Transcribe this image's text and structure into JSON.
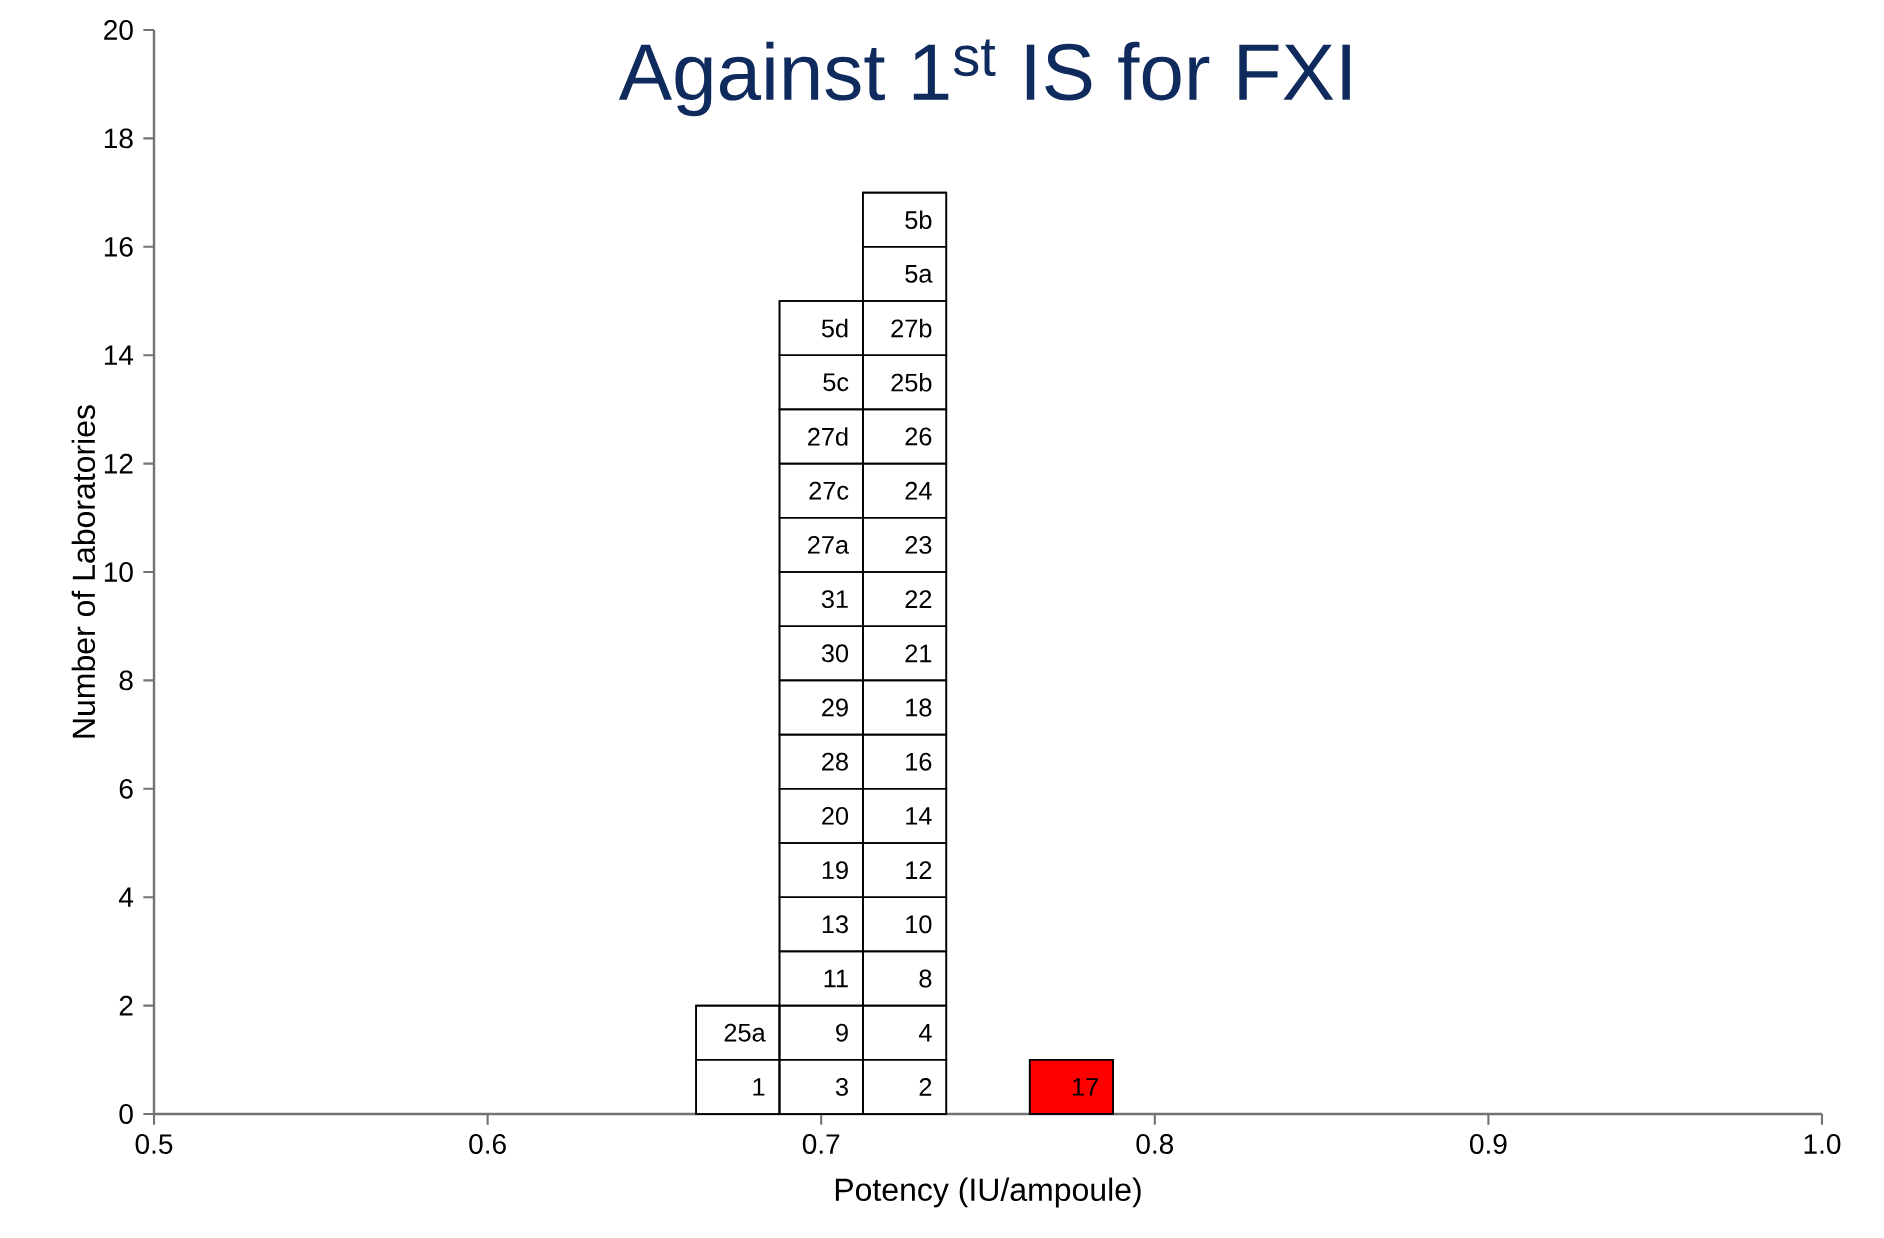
{
  "chart_data": {
    "type": "histogram",
    "title": "Against 1$^{st}$ IS for FXI",
    "xlabel": "Potency (IU/ampoule)",
    "ylabel": "Number of Laboratories",
    "bins": [
      0.6625,
      0.6875,
      0.7125,
      0.7375,
      0.7625,
      0.7875
    ],
    "values": [
      2,
      15,
      17,
      0,
      1
    ],
    "colors": [
      "#ffffff",
      "#ffffff",
      "#ffffff",
      "#ffffff",
      "#ff0000"
    ],
    "xlim": [
      0.5,
      1.0
    ],
    "xticks": [
      0.5,
      0.6,
      0.7,
      0.8,
      0.9,
      {
        "value": 1,
        "label": "1.0"
      }
    ],
    "ylim": [
      0,
      20
    ],
    "yticks": [
      0,
      2,
      4,
      6,
      8,
      10,
      12,
      14,
      16,
      18,
      20
    ],
    "grid": false,
    "annotations": [
      "1",
      "25a",
      "3",
      "9",
      "11",
      "13",
      "19",
      "20",
      "28",
      "29",
      "30",
      "31",
      "27a",
      "27c",
      "27d",
      "5c",
      "5d",
      "2",
      "4",
      "8",
      "10",
      "12",
      "14",
      "16",
      "18",
      "21",
      "22",
      "23",
      "24",
      "26",
      "25b",
      "27b",
      "5a",
      "5b",
      "17"
    ]
  }
}
